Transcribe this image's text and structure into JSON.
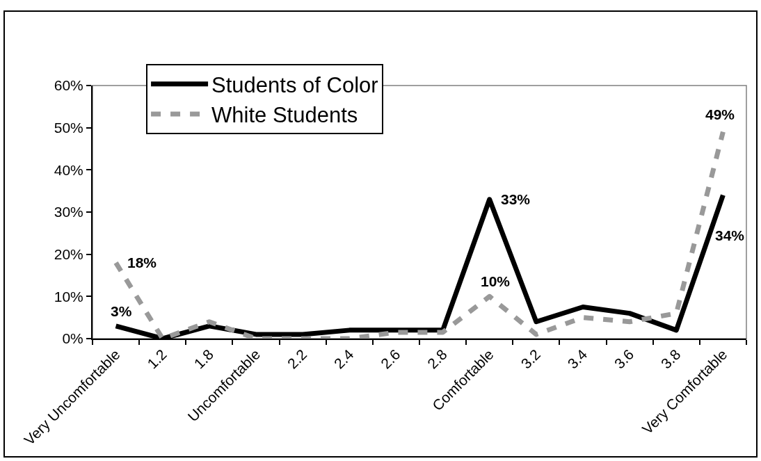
{
  "chart_data": {
    "type": "line",
    "categories": [
      "Very Uncomfortable",
      "1.2",
      "1.8",
      "Uncomfortable",
      "2.2",
      "2.4",
      "2.6",
      "2.8",
      "Comfortable",
      "3.2",
      "3.4",
      "3.6",
      "3.8",
      "Very Comfortable"
    ],
    "series": [
      {
        "name": "Students of Color",
        "color": "#000000",
        "line_style": "solid",
        "values": [
          3,
          0,
          3,
          1,
          1,
          2,
          2,
          2,
          33,
          4,
          7.5,
          6,
          2,
          34
        ],
        "value_labels": [
          "3%",
          null,
          null,
          null,
          null,
          null,
          null,
          null,
          "33%",
          null,
          null,
          null,
          null,
          "34%"
        ]
      },
      {
        "name": "White Students",
        "color": "#999999",
        "line_style": "dashed",
        "values": [
          18,
          0,
          4,
          0,
          0,
          0,
          1.5,
          1.5,
          10,
          1,
          5,
          4,
          6,
          49
        ],
        "value_labels": [
          "18%",
          null,
          null,
          null,
          null,
          null,
          null,
          null,
          "10%",
          null,
          null,
          null,
          null,
          "49%"
        ]
      }
    ],
    "ylim": [
      0,
      60
    ],
    "yticks": [
      {
        "value": 0,
        "label": "0%"
      },
      {
        "value": 10,
        "label": "10%"
      },
      {
        "value": 20,
        "label": "20%"
      },
      {
        "value": 30,
        "label": "30%"
      },
      {
        "value": 40,
        "label": "40%"
      },
      {
        "value": 50,
        "label": "50%"
      },
      {
        "value": 60,
        "label": "60%"
      }
    ],
    "legend": "top left"
  }
}
